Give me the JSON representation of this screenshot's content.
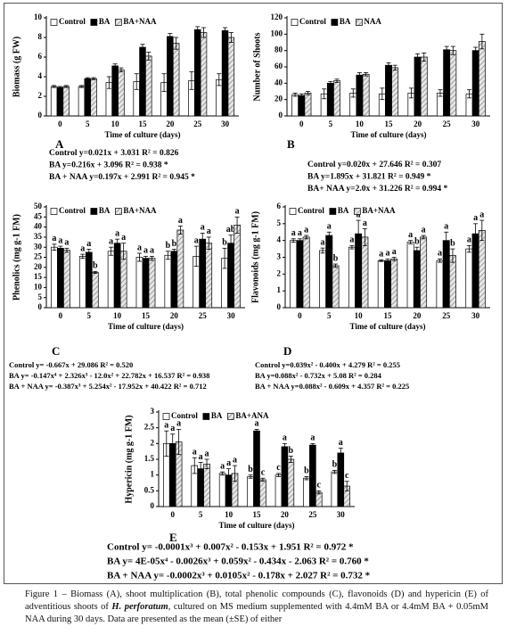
{
  "chart_data": [
    {
      "type": "bar",
      "panel": "A",
      "y_label": "Biomass (g FW)",
      "x_label": "Time of culture (days)",
      "categories": [
        "0",
        "5",
        "10",
        "15",
        "20",
        "25",
        "30"
      ],
      "ylim": [
        0,
        10
      ],
      "yticks": [
        0,
        2,
        4,
        6,
        8,
        10
      ],
      "legend": "upper left",
      "series": [
        {
          "name": "Control",
          "color": "#ffffff",
          "values": [
            3.0,
            3.0,
            3.4,
            3.5,
            3.4,
            3.6,
            3.7
          ],
          "errors": [
            0.1,
            0.1,
            0.6,
            0.8,
            0.9,
            0.9,
            0.6
          ]
        },
        {
          "name": "BA",
          "color": "#000000",
          "values": [
            2.9,
            3.8,
            5.1,
            7.0,
            8.1,
            8.8,
            8.7
          ],
          "errors": [
            0.1,
            0.1,
            0.2,
            0.3,
            0.3,
            0.3,
            0.3
          ]
        },
        {
          "name": "BA+NAA",
          "color": "#8c8c8c",
          "hatch": true,
          "values": [
            3.0,
            3.8,
            4.7,
            6.1,
            7.4,
            8.5,
            8.0
          ],
          "errors": [
            0.1,
            0.1,
            0.2,
            0.4,
            0.6,
            0.5,
            0.5
          ]
        }
      ],
      "equations": [
        "Control   y=0.021x + 3.031   R² = 0.826",
        "BA   y=0.216x + 3.096   R² = 0.938 *",
        "BA + NAA   y=0.197x + 2.991   R² = 0.945 *"
      ]
    },
    {
      "type": "bar",
      "panel": "B",
      "y_label": "Number of Shoots",
      "x_label": "Time of culture (days)",
      "categories": [
        "0",
        "5",
        "10",
        "15",
        "20",
        "25",
        "30"
      ],
      "ylim": [
        0,
        120
      ],
      "yticks": [
        0,
        20,
        40,
        60,
        80,
        100,
        120
      ],
      "legend": "upper left",
      "series": [
        {
          "name": "Control",
          "color": "#ffffff",
          "values": [
            26,
            27,
            28,
            27,
            28,
            28,
            27
          ],
          "errors": [
            2,
            6,
            5,
            7,
            6,
            4,
            5
          ]
        },
        {
          "name": "BA",
          "color": "#000000",
          "values": [
            25,
            40,
            50,
            62,
            72,
            81,
            80
          ],
          "errors": [
            2,
            2,
            3,
            3,
            4,
            4,
            4
          ]
        },
        {
          "name": "NAA",
          "color": "#8c8c8c",
          "hatch": true,
          "values": [
            28,
            43,
            51,
            59,
            72,
            80,
            91
          ],
          "errors": [
            2,
            2,
            2,
            3,
            5,
            5,
            9
          ]
        }
      ],
      "equations": [
        "Control   y=0.020x + 27.646   R² = 0.307",
        "BA   y=1.895x + 31.821   R² = 0.949 *",
        "BA+ NAA   y=2.0x + 31.226   R² = 0.994 *"
      ]
    },
    {
      "type": "bar",
      "panel": "C",
      "y_label": "Phenolics (mg g-1 FM)",
      "x_label": "Time of culture (days)",
      "categories": [
        "0",
        "5",
        "10",
        "15",
        "20",
        "25",
        "30"
      ],
      "ylim": [
        0,
        50
      ],
      "yticks": [
        0,
        5,
        10,
        15,
        20,
        25,
        30,
        35,
        40,
        45,
        50
      ],
      "legend": "upper left",
      "series": [
        {
          "name": "Control",
          "color": "#ffffff",
          "values": [
            30,
            25.5,
            28,
            25,
            26,
            25.5,
            24.5
          ],
          "errors": [
            1.5,
            1,
            2,
            2,
            2,
            5,
            5
          ],
          "letters": [
            "a",
            "a",
            "a",
            "a",
            "b",
            "a",
            "b"
          ]
        },
        {
          "name": "BA",
          "color": "#000000",
          "values": [
            29.5,
            27.5,
            32,
            24.5,
            28,
            34,
            32
          ],
          "errors": [
            1,
            1.5,
            2,
            1,
            1,
            3,
            4
          ],
          "letters": [
            "a",
            "a",
            "a",
            "a",
            "b",
            "a",
            "ab"
          ]
        },
        {
          "name": "BA+NAA",
          "color": "#8c8c8c",
          "hatch": true,
          "values": [
            28.5,
            17.5,
            28,
            24.5,
            38.5,
            32,
            41
          ],
          "errors": [
            1,
            0.5,
            4,
            1,
            2,
            3,
            4
          ],
          "letters": [
            "a",
            "b",
            "a",
            "a",
            "a",
            "a",
            "a"
          ]
        }
      ],
      "equations": [
        "Control y= -0.667x + 29.086   R² = 0.520",
        "BA y= -0.147x⁴ + 2.326x³ - 12.0x² + 22.782x + 16.537   R² = 0.938",
        "BA + NAA   y= -0.387x³ + 5.254x² - 17.952x + 40.422   R² = 0.712"
      ]
    },
    {
      "type": "bar",
      "panel": "D",
      "y_label": "Flavonoids (mg g-1 FM)",
      "x_label": "Time of culture (days)",
      "categories": [
        "0",
        "5",
        "10",
        "15",
        "20",
        "25",
        "30"
      ],
      "ylim": [
        0,
        6
      ],
      "yticks": [
        0,
        1,
        2,
        3,
        4,
        5,
        6
      ],
      "legend": "upper left",
      "series": [
        {
          "name": "Control",
          "color": "#ffffff",
          "values": [
            4.0,
            3.4,
            3.6,
            2.8,
            3.9,
            2.8,
            3.5
          ],
          "errors": [
            0.1,
            0.15,
            0.1,
            0.05,
            0.1,
            0.1,
            0.2
          ],
          "letters": [
            "a",
            "a",
            "a",
            "a",
            "a",
            "a",
            "a"
          ]
        },
        {
          "name": "BA",
          "color": "#000000",
          "values": [
            4.0,
            4.3,
            4.4,
            2.8,
            3.4,
            4.0,
            4.4
          ],
          "errors": [
            0.1,
            0.2,
            0.8,
            0.1,
            0.2,
            0.5,
            0.6
          ],
          "letters": [
            "a",
            "a",
            "a",
            "a",
            "b",
            "a",
            "a"
          ]
        },
        {
          "name": "BA+NAA",
          "color": "#8c8c8c",
          "hatch": true,
          "values": [
            4.2,
            2.5,
            4.2,
            2.9,
            4.2,
            3.1,
            4.6
          ],
          "errors": [
            0.1,
            0.1,
            0.5,
            0.1,
            0.1,
            0.4,
            0.6
          ],
          "letters": [
            "a",
            "b",
            "a",
            "a",
            "a",
            "b",
            "a"
          ]
        }
      ],
      "equations": [
        "Control y=0.039x² - 0.400x + 4.279  R² = 0.255",
        "BA   y=0.088x² - 0.732x + 5.08   R² = 0.284",
        "BA + NAA   y=0.088x² - 0.609x + 4.357  R² = 0.225"
      ]
    },
    {
      "type": "bar",
      "panel": "E",
      "y_label": "Hypericin (mg g-1 FM)",
      "x_label": "Time of culture (days)",
      "categories": [
        "0",
        "5",
        "10",
        "15",
        "20",
        "25",
        "30"
      ],
      "ylim": [
        0,
        3
      ],
      "yticks": [
        0,
        0.5,
        1,
        1.5,
        2,
        2.5,
        3
      ],
      "legend": "upper left",
      "series": [
        {
          "name": "Control",
          "color": "#ffffff",
          "values": [
            2.0,
            1.3,
            1.05,
            0.95,
            1.0,
            0.9,
            1.1
          ],
          "errors": [
            0.4,
            0.25,
            0.05,
            0.05,
            0.05,
            0.05,
            0.05
          ],
          "letters": [
            "a",
            "a",
            "a",
            "b",
            "c",
            "b",
            "b"
          ]
        },
        {
          "name": "BA",
          "color": "#000000",
          "values": [
            2.0,
            1.2,
            1.0,
            2.4,
            1.9,
            1.95,
            1.7
          ],
          "errors": [
            0.3,
            0.2,
            0.2,
            0.05,
            0.1,
            0.05,
            0.15
          ],
          "letters": [
            "a",
            "a",
            "a",
            "a",
            "a",
            "a",
            "a"
          ]
        },
        {
          "name": "BA+ANA",
          "color": "#8c8c8c",
          "hatch": true,
          "values": [
            2.05,
            1.35,
            1.05,
            0.85,
            1.5,
            0.45,
            0.65
          ],
          "errors": [
            0.4,
            0.15,
            0.25,
            0.05,
            0.1,
            0.05,
            0.15
          ],
          "letters": [
            "a",
            "a",
            "a",
            "c",
            "b",
            "c",
            "c"
          ]
        }
      ],
      "equations": [
        "Control  y= -0.0001x³ + 0.007x² - 0.153x + 1.951   R² = 0.972 *",
        "BA   y= 4E-05x⁴ - 0.0026x³ + 0.059x² - 0.434x - 2.063   R² = 0.760 *",
        "BA + NAA   y= -0.0002x³ + 0.0105x² - 0.178x + 2.027   R² = 0.732 *"
      ]
    }
  ],
  "caption": {
    "before": "Figure 1 – Biomass (A), shoot multiplication (B), total phenolic compounds (C), flavonoids (D) and hypericin (E) of adventitious shoots of",
    "species": "H. perforatum",
    "after": ", cultured on MS medium supplemented with 4.4mM BA or 4.4mM BA + 0.05mM NAA during 30 days. Data are presented as the mean (±SE) of either"
  }
}
